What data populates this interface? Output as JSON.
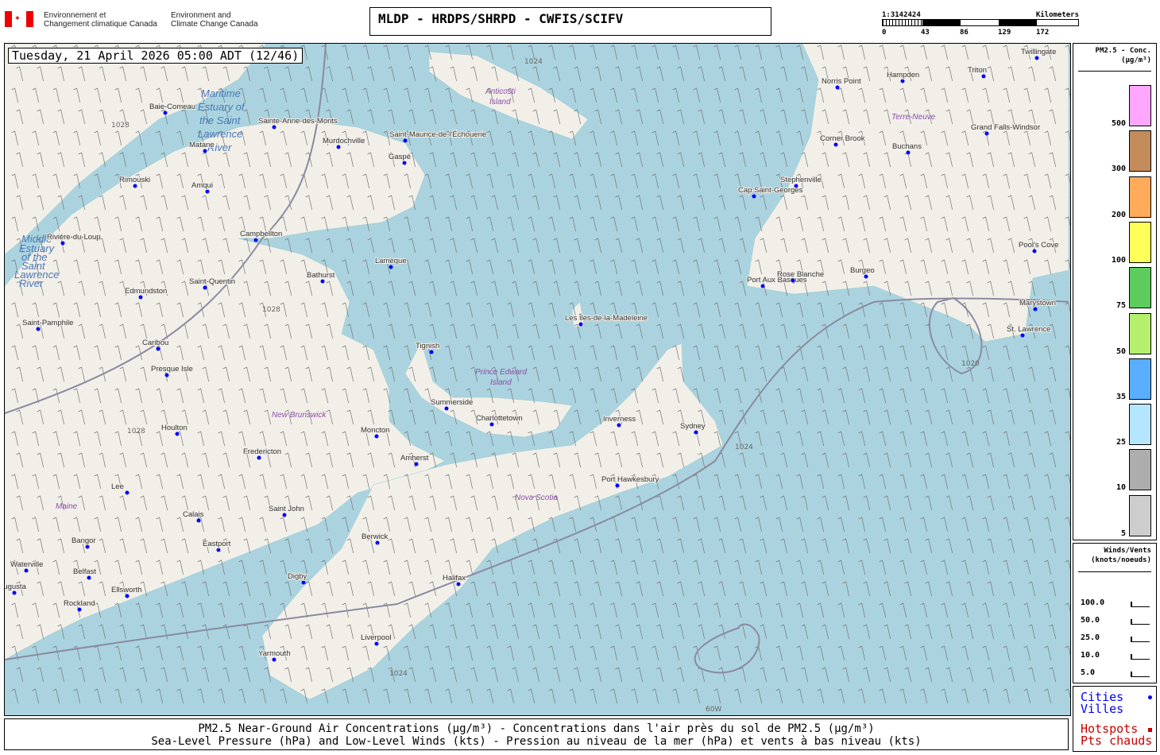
{
  "header": {
    "dept_fr": [
      "Environnement et",
      "Changement climatique Canada"
    ],
    "dept_en": [
      "Environment and",
      "Climate Change Canada"
    ],
    "title": "MLDP - HRDPS/SHRPD - CWFIS/SCIFV"
  },
  "scale": {
    "ratio": "1:3142424",
    "unit": "Kilometers",
    "ticks": [
      "0",
      "43",
      "86",
      "129",
      "172"
    ]
  },
  "map": {
    "datetime": "Tuesday, 21 April 2026 05:00 ADT (12/46)",
    "water_labels": [
      "Maritime",
      "Estuary of",
      "the Saint",
      "Lawrence",
      "River",
      "Middle",
      "Estuary",
      "of the",
      "Saint",
      "Lawrence",
      "River"
    ],
    "regions": [
      "New Brunswick",
      "Prince Edward",
      "Island",
      "Nova Scotia",
      "Maine",
      "Anticosti",
      "Island",
      "Terre-Neuve"
    ],
    "contour_labels": [
      "1028",
      "1024",
      "1020",
      "60W"
    ],
    "cities": [
      "Baie-Comeau",
      "Sainte-Anne-des-Monts",
      "Matane",
      "Murdochville",
      "Saint-Maurice-de-l'Échouerie",
      "Gaspé",
      "Rimouski",
      "Amqui",
      "Rivière-du-Loup",
      "Campbellton",
      "Lamèque",
      "Bathurst",
      "Saint-Quentin",
      "Edmundston",
      "Saint-Pamphile",
      "Caribou",
      "Presque Isle",
      "Tignish",
      "Summerside",
      "Charlottetown",
      "Moncton",
      "Fredericton",
      "Houlton",
      "Amherst",
      "Saint John",
      "Lee",
      "Calais",
      "Eastport",
      "Bangor",
      "Waterville",
      "Belfast",
      "Ellsworth",
      "Augusta",
      "Rockland",
      "Berwick",
      "Digby",
      "Halifax",
      "Liverpool",
      "Yarmouth",
      "Inverness",
      "Sydney",
      "Port Hawkesbury",
      "Les Îles-de-la-Madeleine",
      "Norris Point",
      "Hampden",
      "Triton",
      "Twillingate",
      "Corner Brook",
      "Buchans",
      "Grand Falls-Windsor",
      "Stephenville",
      "Cap Saint-Georges",
      "Port Aux Basques",
      "Rose Blanche",
      "Burgeo",
      "Pool's Cove",
      "Marystown",
      "St. Lawrence"
    ]
  },
  "legend_pm": {
    "title": "PM2.5 - Conc.",
    "unit": "(µg/m³)",
    "items": [
      {
        "label": "500",
        "color": "#ffa6ff"
      },
      {
        "label": "300",
        "color": "#c48b5a"
      },
      {
        "label": "200",
        "color": "#ffab5a"
      },
      {
        "label": "100",
        "color": "#ffff5a"
      },
      {
        "label": "75",
        "color": "#5ccd5c"
      },
      {
        "label": "50",
        "color": "#b4f06e"
      },
      {
        "label": "35",
        "color": "#5aaeff"
      },
      {
        "label": "25",
        "color": "#b4e6ff"
      },
      {
        "label": "10",
        "color": "#adadad"
      },
      {
        "label": "5",
        "color": "#cdcdcd"
      }
    ]
  },
  "legend_wind": {
    "title": "Winds/Vents",
    "unit": "(knots/noeuds)",
    "items": [
      "100.0",
      "50.0",
      "25.0",
      "10.0",
      "5.0"
    ]
  },
  "legend_points": {
    "cities": [
      "Cities",
      "Villes"
    ],
    "hotspots": [
      "Hotspots",
      "Pts chauds"
    ],
    "city_color": "#0000ff",
    "hotspot_color": "#cc0000"
  },
  "footer": {
    "line1": "PM2.5 Near-Ground Air Concentrations (µg/m³) - Concentrations dans l'air près du sol de PM2.5 (µg/m³)",
    "line2": "Sea-Level Pressure (hPa) and Low-Level Winds (kts) - Pression au niveau de la mer (hPa) et vents à bas niveau (kts)"
  }
}
